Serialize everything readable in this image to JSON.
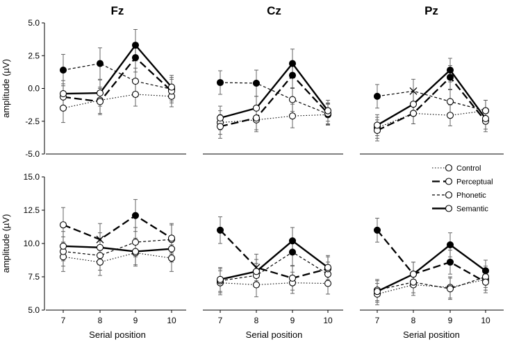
{
  "chart_data": {
    "type": "line",
    "x": [
      7,
      8,
      9,
      10
    ],
    "x_tick_labels": [
      "7",
      "8",
      "9",
      "10"
    ],
    "xlabel": "Serial position",
    "column_titles": [
      "Fz",
      "Cz",
      "Pz"
    ],
    "legend": [
      {
        "name": "Control",
        "style": "dotted"
      },
      {
        "name": "Perceptual",
        "style": "long-dash"
      },
      {
        "name": "Phonetic",
        "style": "short-dash"
      },
      {
        "name": "Semantic",
        "style": "solid"
      }
    ],
    "rows": [
      {
        "ylabel": "amplitude (µV)",
        "ylim": [
          -5.0,
          5.0
        ],
        "yticks": [
          -5.0,
          -2.5,
          0.0,
          2.5,
          5.0
        ],
        "ytick_labels": [
          "-5.0",
          "-2.5",
          "0.0",
          "2.5",
          "5.0"
        ],
        "panels": [
          {
            "title": "Fz",
            "series": [
              {
                "name": "Control",
                "values": [
                  -1.5,
                  -0.9,
                  -0.45,
                  -0.6
                ],
                "errors": [
                  1.1,
                  1.0,
                  0.9,
                  0.8
                ],
                "markers": [
                  "open",
                  "open",
                  "open",
                  "open"
                ]
              },
              {
                "name": "Perceptual",
                "values": [
                  -0.65,
                  -1.0,
                  2.35,
                  -0.2
                ],
                "errors": [
                  1.0,
                  1.0,
                  1.1,
                  0.9
                ],
                "markers": [
                  "open",
                  "open",
                  "filled",
                  "open"
                ]
              },
              {
                "name": "Phonetic",
                "values": [
                  1.4,
                  1.9,
                  0.55,
                  -0.05
                ],
                "errors": [
                  1.2,
                  1.2,
                  1.0,
                  0.9
                ],
                "markers": [
                  "filled",
                  "filled",
                  "open",
                  "open"
                ]
              },
              {
                "name": "Semantic",
                "values": [
                  -0.4,
                  -0.35,
                  3.3,
                  0.1
                ],
                "errors": [
                  1.0,
                  1.0,
                  1.2,
                  0.9
                ],
                "markers": [
                  "open",
                  "open",
                  "filled",
                  "open"
                ]
              }
            ]
          },
          {
            "title": "Cz",
            "series": [
              {
                "name": "Control",
                "values": [
                  -2.6,
                  -2.4,
                  -2.1,
                  -2.0
                ],
                "errors": [
                  0.9,
                  0.9,
                  0.9,
                  0.8
                ],
                "markers": [
                  "open",
                  "open",
                  "open",
                  "open"
                ]
              },
              {
                "name": "Perceptual",
                "values": [
                  -2.9,
                  -2.25,
                  1.0,
                  -1.9
                ],
                "errors": [
                  0.9,
                  0.9,
                  1.0,
                  0.8
                ],
                "markers": [
                  "open",
                  "open",
                  "filled",
                  "open"
                ]
              },
              {
                "name": "Phonetic",
                "values": [
                  0.45,
                  0.4,
                  -0.85,
                  -1.95
                ],
                "errors": [
                  0.9,
                  1.0,
                  0.9,
                  0.8
                ],
                "markers": [
                  "filled",
                  "filled",
                  "open",
                  "open"
                ]
              },
              {
                "name": "Semantic",
                "values": [
                  -2.25,
                  -1.5,
                  1.9,
                  -1.7
                ],
                "errors": [
                  0.9,
                  0.9,
                  1.1,
                  0.8
                ],
                "markers": [
                  "open",
                  "open",
                  "filled",
                  "open"
                ]
              }
            ]
          },
          {
            "title": "Pz",
            "series": [
              {
                "name": "Control",
                "values": [
                  -3.0,
                  -1.9,
                  -2.05,
                  -1.7
                ],
                "errors": [
                  0.8,
                  0.8,
                  0.8,
                  0.8
                ],
                "markers": [
                  "open",
                  "open",
                  "open",
                  "open"
                ]
              },
              {
                "name": "Perceptual",
                "values": [
                  -3.2,
                  -1.9,
                  0.85,
                  -2.5
                ],
                "errors": [
                  0.8,
                  0.8,
                  0.9,
                  0.8
                ],
                "markers": [
                  "open",
                  "open",
                  "filled",
                  "open"
                ]
              },
              {
                "name": "Phonetic",
                "values": [
                  -0.6,
                  -0.2,
                  -1.0,
                  -1.7
                ],
                "errors": [
                  0.9,
                  0.9,
                  0.9,
                  0.8
                ],
                "markers": [
                  "filled",
                  "cross",
                  "open",
                  "open"
                ]
              },
              {
                "name": "Semantic",
                "values": [
                  -2.8,
                  -1.2,
                  1.4,
                  -2.3
                ],
                "errors": [
                  0.8,
                  0.9,
                  0.9,
                  0.8
                ],
                "markers": [
                  "open",
                  "open",
                  "filled",
                  "open"
                ]
              }
            ]
          }
        ]
      },
      {
        "ylabel": "amplitude (µV)",
        "ylim": [
          5.0,
          15.0
        ],
        "yticks": [
          5.0,
          7.5,
          10.0,
          12.5,
          15.0
        ],
        "ytick_labels": [
          "5.0",
          "7.5",
          "10.0",
          "12.5",
          "15.0"
        ],
        "panels": [
          {
            "title": "Fz",
            "series": [
              {
                "name": "Control",
                "values": [
                  9.0,
                  8.6,
                  9.3,
                  8.9
                ],
                "errors": [
                  1.1,
                  1.0,
                  1.0,
                  1.0
                ],
                "markers": [
                  "open",
                  "open",
                  "open",
                  "open"
                ]
              },
              {
                "name": "Perceptual",
                "values": [
                  11.4,
                  10.3,
                  12.1,
                  10.4
                ],
                "errors": [
                  1.3,
                  1.2,
                  1.2,
                  1.1
                ],
                "markers": [
                  "open",
                  "cross",
                  "filled",
                  "open"
                ]
              },
              {
                "name": "Phonetic",
                "values": [
                  9.4,
                  9.1,
                  10.1,
                  10.3
                ],
                "errors": [
                  1.1,
                  1.1,
                  1.1,
                  1.1
                ],
                "markers": [
                  "open",
                  "open",
                  "open",
                  "open"
                ]
              },
              {
                "name": "Semantic",
                "values": [
                  9.8,
                  9.7,
                  9.4,
                  9.6
                ],
                "errors": [
                  1.1,
                  1.1,
                  1.0,
                  1.0
                ],
                "markers": [
                  "open",
                  "open",
                  "open",
                  "open"
                ]
              }
            ]
          },
          {
            "title": "Cz",
            "series": [
              {
                "name": "Control",
                "values": [
                  7.05,
                  6.9,
                  7.05,
                  7.0
                ],
                "errors": [
                  0.9,
                  0.9,
                  0.8,
                  0.8
                ],
                "markers": [
                  "open",
                  "open",
                  "open",
                  "open"
                ]
              },
              {
                "name": "Perceptual",
                "values": [
                  11.0,
                  8.2,
                  7.4,
                  8.1
                ],
                "errors": [
                  1.0,
                  1.0,
                  0.9,
                  0.9
                ],
                "markers": [
                  "filled",
                  "cross",
                  "open",
                  "open"
                ]
              },
              {
                "name": "Phonetic",
                "values": [
                  7.2,
                  7.6,
                  9.35,
                  7.7
                ],
                "errors": [
                  0.9,
                  0.9,
                  1.0,
                  0.9
                ],
                "markers": [
                  "open",
                  "open",
                  "filled",
                  "open"
                ]
              },
              {
                "name": "Semantic",
                "values": [
                  7.3,
                  7.9,
                  10.2,
                  8.2
                ],
                "errors": [
                  0.9,
                  0.9,
                  1.0,
                  0.9
                ],
                "markers": [
                  "open",
                  "open",
                  "filled",
                  "open"
                ]
              }
            ]
          },
          {
            "title": "Pz",
            "series": [
              {
                "name": "Control",
                "values": [
                  6.2,
                  6.9,
                  6.7,
                  7.3
                ],
                "errors": [
                  0.8,
                  0.8,
                  0.8,
                  0.8
                ],
                "markers": [
                  "open",
                  "open",
                  "open",
                  "open"
                ]
              },
              {
                "name": "Perceptual",
                "values": [
                  11.0,
                  7.7,
                  8.6,
                  7.1
                ],
                "errors": [
                  0.9,
                  0.9,
                  0.9,
                  0.8
                ],
                "markers": [
                  "filled",
                  "open",
                  "filled",
                  "open"
                ]
              },
              {
                "name": "Phonetic",
                "values": [
                  6.5,
                  7.1,
                  6.6,
                  7.5
                ],
                "errors": [
                  0.8,
                  0.8,
                  0.8,
                  0.8
                ],
                "markers": [
                  "open",
                  "open",
                  "open",
                  "open"
                ]
              },
              {
                "name": "Semantic",
                "values": [
                  6.4,
                  7.7,
                  9.9,
                  7.95
                ],
                "errors": [
                  0.8,
                  0.9,
                  0.9,
                  0.8
                ],
                "markers": [
                  "open",
                  "open",
                  "filled",
                  "filled"
                ]
              }
            ]
          }
        ]
      }
    ]
  }
}
